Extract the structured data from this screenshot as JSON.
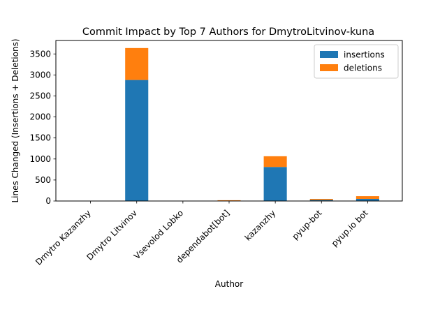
{
  "chart_data": {
    "type": "bar",
    "stacked": true,
    "title": "Commit Impact by Top 7 Authors for DmytroLitvinov-kuna",
    "xlabel": "Author",
    "ylabel": "Lines Changed (Insertions + Deletions)",
    "categories": [
      "Dmytro Kazanzhy",
      "Dmytro Litvinov",
      "Vsevolod Lobko",
      "dependabot[bot]",
      "kazanzhy",
      "pyup-bot",
      "pyup.io bot"
    ],
    "series": [
      {
        "name": "insertions",
        "color": "#1f77b4",
        "values": [
          1,
          2880,
          1,
          8,
          810,
          25,
          50
        ]
      },
      {
        "name": "deletions",
        "color": "#ff7f0e",
        "values": [
          1,
          760,
          1,
          10,
          255,
          25,
          65
        ]
      }
    ],
    "ylim": [
      0,
      3820
    ],
    "yticks": [
      0,
      500,
      1000,
      1500,
      2000,
      2500,
      3000,
      3500
    ],
    "legend": "top-right",
    "grid": false
  }
}
